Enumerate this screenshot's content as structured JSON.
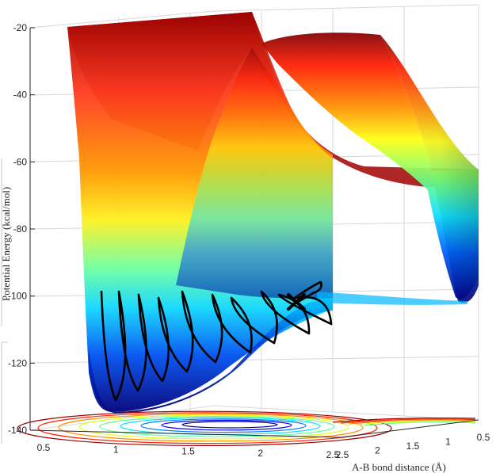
{
  "chart_data": {
    "type": "surface",
    "title": "",
    "xlabel": "A-B bond distance (Å)",
    "zlabel": "Potential Energy (kcal/mol)",
    "zlim": [
      -140,
      -20
    ],
    "z_ticks": [
      "-20",
      "-40",
      "-60",
      "-80",
      "-100",
      "-120",
      "-140"
    ],
    "x_ticks_front": [
      "0.5",
      "1",
      "1.5",
      "2",
      "2.5"
    ],
    "x_ticks_side": [
      "2.5",
      "2",
      "1.5",
      "1",
      "0.5"
    ],
    "colormap": "jet",
    "grid": true,
    "trajectory": {
      "color": "#000000",
      "end_marker": "x",
      "energy_range": [
        -132,
        -100
      ]
    }
  }
}
